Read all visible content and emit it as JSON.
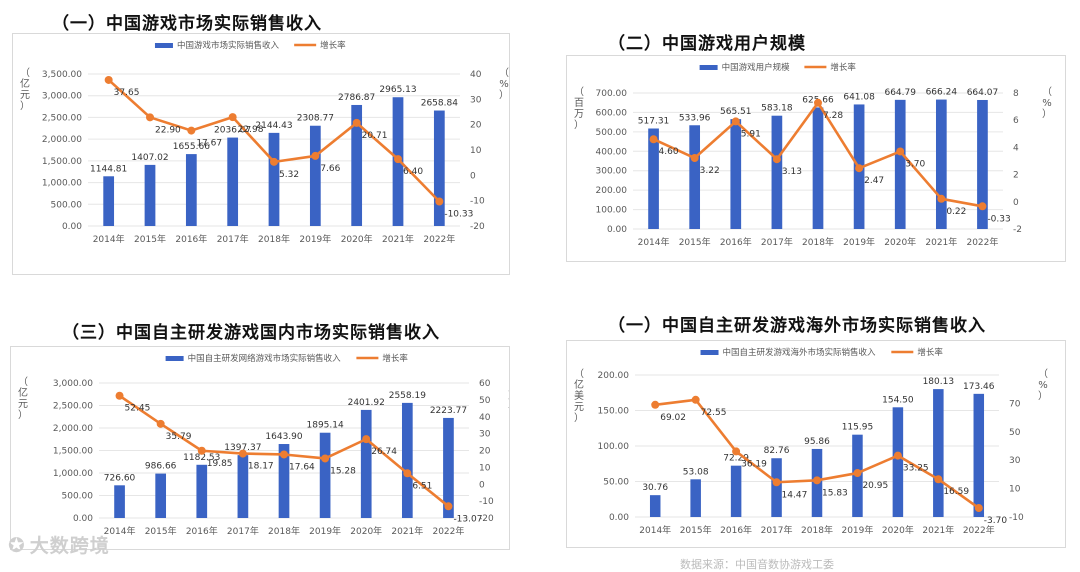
{
  "charts": [
    {
      "title": "（一）中国游戏市场实际销售收入",
      "chart_data": {
        "type": "bar-line",
        "categories": [
          "2014年",
          "2015年",
          "2016年",
          "2017年",
          "2018年",
          "2019年",
          "2020年",
          "2021年",
          "2022年"
        ],
        "bar_series": {
          "name": "中国游戏市场实际销售收入",
          "values": [
            1144.81,
            1407.02,
            1655.66,
            2036.07,
            2144.43,
            2308.77,
            2786.87,
            2965.13,
            2658.84
          ]
        },
        "line_series": {
          "name": "增长率",
          "values": [
            37.65,
            22.9,
            17.67,
            22.98,
            5.32,
            7.66,
            20.71,
            6.4,
            -10.33
          ]
        },
        "y_left": {
          "label": "亿元",
          "min": 0,
          "max": 3500,
          "step": 500,
          "ticks": [
            "0.00",
            "500.00",
            "1,000.00",
            "1,500.00",
            "2,000.00",
            "2,500.00",
            "3,000.00",
            "3,500.00"
          ]
        },
        "y_right": {
          "label": "%",
          "min": -20,
          "max": 40,
          "step": 10,
          "ticks": [
            "-20",
            "-10",
            "0",
            "10",
            "20",
            "30",
            "40"
          ]
        },
        "bar_labels": [
          "1144.81",
          "1407.02",
          "1655.66",
          "2036.07",
          "2144.43",
          "2308.77",
          "2786.87",
          "2965.13",
          "2658.84"
        ],
        "line_labels": [
          "37.65",
          "22.90",
          "17.67",
          "22.98",
          "5.32",
          "7.66",
          "20.71",
          "6.40",
          "-10.33"
        ]
      }
    },
    {
      "title": "（二）中国游戏用户规模",
      "chart_data": {
        "type": "bar-line",
        "categories": [
          "2014年",
          "2015年",
          "2016年",
          "2017年",
          "2018年",
          "2019年",
          "2020年",
          "2021年",
          "2022年"
        ],
        "bar_series": {
          "name": "中国游戏用户规模",
          "values": [
            517.31,
            533.96,
            565.51,
            583.18,
            625.66,
            641.08,
            664.79,
            666.24,
            664.07
          ]
        },
        "line_series": {
          "name": "增长率",
          "values": [
            4.6,
            3.22,
            5.91,
            3.13,
            7.28,
            2.47,
            3.7,
            0.22,
            -0.33
          ]
        },
        "y_left": {
          "label": "百万",
          "min": 0,
          "max": 700,
          "step": 100,
          "ticks": [
            "0.00",
            "100.00",
            "200.00",
            "300.00",
            "400.00",
            "500.00",
            "600.00",
            "700.00"
          ]
        },
        "y_right": {
          "label": "%",
          "min": -2,
          "max": 8,
          "step": 2,
          "ticks": [
            "-2",
            "0",
            "2",
            "4",
            "6",
            "8"
          ]
        },
        "bar_labels": [
          "517.31",
          "533.96",
          "565.51",
          "583.18",
          "625.66",
          "641.08",
          "664.79",
          "666.24",
          "664.07"
        ],
        "line_labels": [
          "4.60",
          "3.22",
          "5.91",
          "3.13",
          "7.28",
          "2.47",
          "3.70",
          "0.22",
          "-0.33"
        ]
      }
    },
    {
      "title": "（三）中国自主研发游戏国内市场实际销售收入",
      "chart_data": {
        "type": "bar-line",
        "categories": [
          "2014年",
          "2015年",
          "2016年",
          "2017年",
          "2018年",
          "2019年",
          "2020年",
          "2021年",
          "2022年"
        ],
        "bar_series": {
          "name": "中国自主研发网络游戏市场实际销售收入",
          "values": [
            726.6,
            986.66,
            1182.53,
            1397.37,
            1643.9,
            1895.14,
            2401.92,
            2558.19,
            2223.77
          ]
        },
        "line_series": {
          "name": "增长率",
          "values": [
            52.45,
            35.79,
            19.85,
            18.17,
            17.64,
            15.28,
            26.74,
            6.51,
            -13.07
          ]
        },
        "y_left": {
          "label": "亿元",
          "min": 0,
          "max": 3000,
          "step": 500,
          "ticks": [
            "0.00",
            "500.00",
            "1,000.00",
            "1,500.00",
            "2,000.00",
            "2,500.00",
            "3,000.00"
          ]
        },
        "y_right": {
          "label": "%",
          "min": -20,
          "max": 60,
          "step": 10,
          "ticks": [
            "-20",
            "-10",
            "0",
            "10",
            "20",
            "30",
            "40",
            "50",
            "60"
          ]
        },
        "bar_labels": [
          "726.60",
          "986.66",
          "1182.53",
          "1397.37",
          "1643.90",
          "1895.14",
          "2401.92",
          "2558.19",
          "2223.77"
        ],
        "line_labels": [
          "52.45",
          "35.79",
          "19.85",
          "18.17",
          "17.64",
          "15.28",
          "26.74",
          "6.51",
          "-13.07"
        ]
      }
    },
    {
      "title": "（一）中国自主研发游戏海外市场实际销售收入",
      "chart_data": {
        "type": "bar-line",
        "categories": [
          "2014年",
          "2015年",
          "2016年",
          "2017年",
          "2018年",
          "2019年",
          "2020年",
          "2021年",
          "2022年"
        ],
        "bar_series": {
          "name": "中国自主研发游戏海外市场实际销售收入",
          "values": [
            30.76,
            53.08,
            72.29,
            82.76,
            95.86,
            115.95,
            154.5,
            180.13,
            173.46
          ]
        },
        "line_series": {
          "name": "增长率",
          "values": [
            69.02,
            72.55,
            36.19,
            14.47,
            15.83,
            20.95,
            33.25,
            16.59,
            -3.7
          ]
        },
        "y_left": {
          "label": "亿美元",
          "min": 0,
          "max": 200,
          "step": 50,
          "ticks": [
            "0.00",
            "50.00",
            "100.00",
            "150.00",
            "200.00"
          ]
        },
        "y_right": {
          "label": "%",
          "min": -10,
          "max": 90,
          "step": 20,
          "ticks": [
            "-10",
            "10",
            "30",
            "50",
            "70"
          ]
        },
        "bar_labels": [
          "30.76",
          "53.08",
          "72.29",
          "82.76",
          "95.86",
          "115.95",
          "154.50",
          "180.13",
          "173.46"
        ],
        "line_labels": [
          "69.02",
          "72.55",
          "36.19",
          "14.47",
          "15.83",
          "20.95",
          "33.25",
          "16.59",
          "-3.70"
        ]
      }
    }
  ],
  "colors": {
    "bar": "#3a63c4",
    "line": "#ed7d31",
    "axis_text": "#595959",
    "grid": "#e6e6e6",
    "label": "#333333"
  },
  "watermark": {
    "text": "大数跨境",
    "icon": "wechat-logo-icon"
  },
  "footer_caption": "数据来源：中国音数协游戏工委"
}
